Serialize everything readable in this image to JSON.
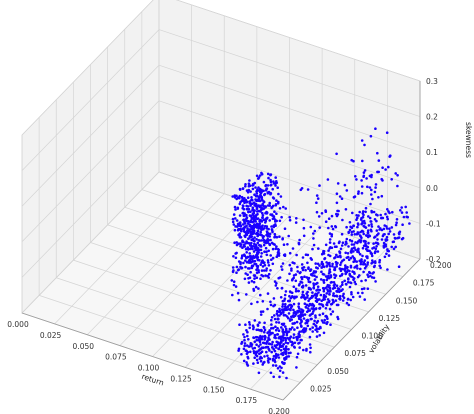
{
  "chart_data": {
    "type": "scatter",
    "projection": "3d",
    "xlabel": "return",
    "ylabel": "volatility",
    "zlabel": "skewness",
    "xlim": [
      0.0,
      0.2
    ],
    "ylim": [
      0.0,
      0.2
    ],
    "zlim": [
      -0.2,
      0.3
    ],
    "x_ticks": [
      "0.000",
      "0.025",
      "0.050",
      "0.075",
      "0.100",
      "0.125",
      "0.150",
      "0.175",
      "0.200"
    ],
    "y_ticks": [
      "0.025",
      "0.050",
      "0.075",
      "0.100",
      "0.125",
      "0.150",
      "0.175",
      "0.200"
    ],
    "z_ticks": [
      "0.3",
      "0.2",
      "0.1",
      "0.0",
      "-0.1",
      "-0.2"
    ],
    "grid": true,
    "marker_color": "#1a00ff",
    "pane_color": "#f2f2f2",
    "series": [
      {
        "clusters": [
          {
            "x_range": [
              0.16,
              0.195
            ],
            "y_range": [
              0.01,
              0.2
            ],
            "z_center": -0.12,
            "z_spread": 0.025,
            "count": 900
          },
          {
            "x_range": [
              0.155,
              0.175
            ],
            "y_range": [
              0.01,
              0.05
            ],
            "z_center": 0.19,
            "z_spread": 0.08,
            "count": 650
          },
          {
            "x_range": [
              0.16,
              0.195
            ],
            "y_range": [
              0.05,
              0.2
            ],
            "z_center": -0.02,
            "z_spread": 0.1,
            "count": 350
          }
        ]
      }
    ]
  }
}
